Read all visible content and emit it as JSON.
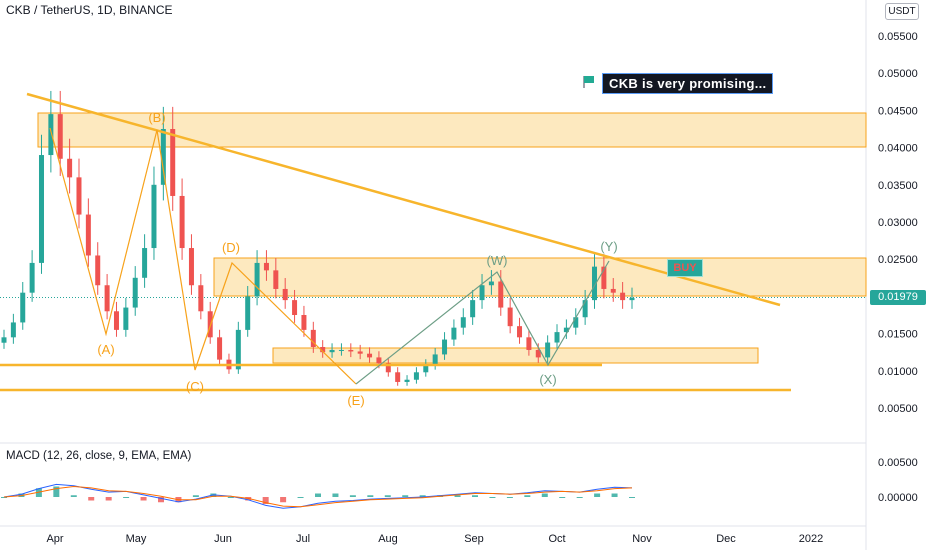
{
  "header": {
    "title": "CKB / TetherUS, 1D, BINANCE",
    "currency_button": "USDT"
  },
  "annotation_note": "CKB is very promising...",
  "buy_label": "BUY",
  "current_price_label": "0.01979",
  "macd_indicator_label": "MACD (12, 26, close, 9, EMA, EMA)",
  "colors": {
    "up": "#26a69a",
    "down": "#ef5350",
    "drawing": "#f7b52c",
    "zone_fill": "#f7b52c",
    "macd_line": "#2962ff",
    "signal_line": "#ff6d00",
    "wave_labels_green": "#6d9e86"
  },
  "chart_data": {
    "type": "candlestick",
    "symbol": "CKB / TetherUS",
    "interval": "1D",
    "exchange": "BINANCE",
    "ylim": [
      0.003,
      0.059
    ],
    "y_ticks": [
      "0.05500",
      "0.05000",
      "0.04500",
      "0.04000",
      "0.03500",
      "0.03000",
      "0.02500",
      "0.02000",
      "0.01500",
      "0.01000",
      "0.00500"
    ],
    "x_ticks": [
      "Apr",
      "May",
      "Jun",
      "Jul",
      "Aug",
      "Sep",
      "Oct",
      "Nov",
      "Dec",
      "2022"
    ],
    "current_price": 0.01979,
    "closes": [
      0.0145,
      0.0165,
      0.0205,
      0.0245,
      0.039,
      0.0445,
      0.0385,
      0.036,
      0.031,
      0.0255,
      0.0215,
      0.018,
      0.0155,
      0.0185,
      0.0225,
      0.0265,
      0.035,
      0.0425,
      0.0335,
      0.0265,
      0.0215,
      0.018,
      0.0145,
      0.0115,
      0.0102,
      0.0155,
      0.02,
      0.0245,
      0.0235,
      0.021,
      0.0195,
      0.0175,
      0.0155,
      0.0132,
      0.0125,
      0.0128,
      0.0128,
      0.0126,
      0.0123,
      0.0118,
      0.011,
      0.0098,
      0.0085,
      0.0088,
      0.0098,
      0.0108,
      0.0122,
      0.0142,
      0.0158,
      0.0172,
      0.0195,
      0.0215,
      0.022,
      0.0185,
      0.016,
      0.0145,
      0.0128,
      0.0118,
      0.0138,
      0.0152,
      0.0158,
      0.0172,
      0.0195,
      0.024,
      0.021,
      0.0205,
      0.0195,
      0.0198
    ],
    "macd": {
      "series": [
        {
          "name": "MACD",
          "values": [
            0.0,
            0.0004,
            0.0012,
            0.0018,
            0.0016,
            0.0011,
            0.0007,
            0.0008,
            0.0003,
            -0.0002,
            -0.0007,
            -0.0003,
            0.0003,
            0.0001,
            -0.0004,
            -0.0012,
            -0.0016,
            -0.0014,
            -0.0009,
            -0.0006,
            -0.0005,
            -0.0003,
            -0.0002,
            -0.0001,
            0.0,
            0.0002,
            0.0004,
            0.0006,
            0.0005,
            0.0004,
            0.0006,
            0.0009,
            0.0008,
            0.0007,
            0.0011,
            0.0014,
            0.0013
          ]
        },
        {
          "name": "Signal",
          "values": [
            0.0,
            0.0002,
            0.0007,
            0.0012,
            0.0015,
            0.0013,
            0.0009,
            0.0008,
            0.0005,
            0.0001,
            -0.0004,
            -0.0004,
            0.0001,
            0.0001,
            -0.0002,
            -0.0008,
            -0.0013,
            -0.0014,
            -0.0011,
            -0.0008,
            -0.0006,
            -0.0004,
            -0.0003,
            -0.0002,
            -0.0001,
            0.0001,
            0.0003,
            0.0005,
            0.0005,
            0.0004,
            0.0005,
            0.0007,
            0.0008,
            0.0007,
            0.0009,
            0.0012,
            0.0013
          ]
        }
      ],
      "y_ticks": [
        "0.00500",
        "0.00000"
      ]
    },
    "wave_labels": [
      "(A)",
      "(B)",
      "(C)",
      "(D)",
      "(E)",
      "(W)",
      "(X)",
      "(Y)"
    ]
  }
}
